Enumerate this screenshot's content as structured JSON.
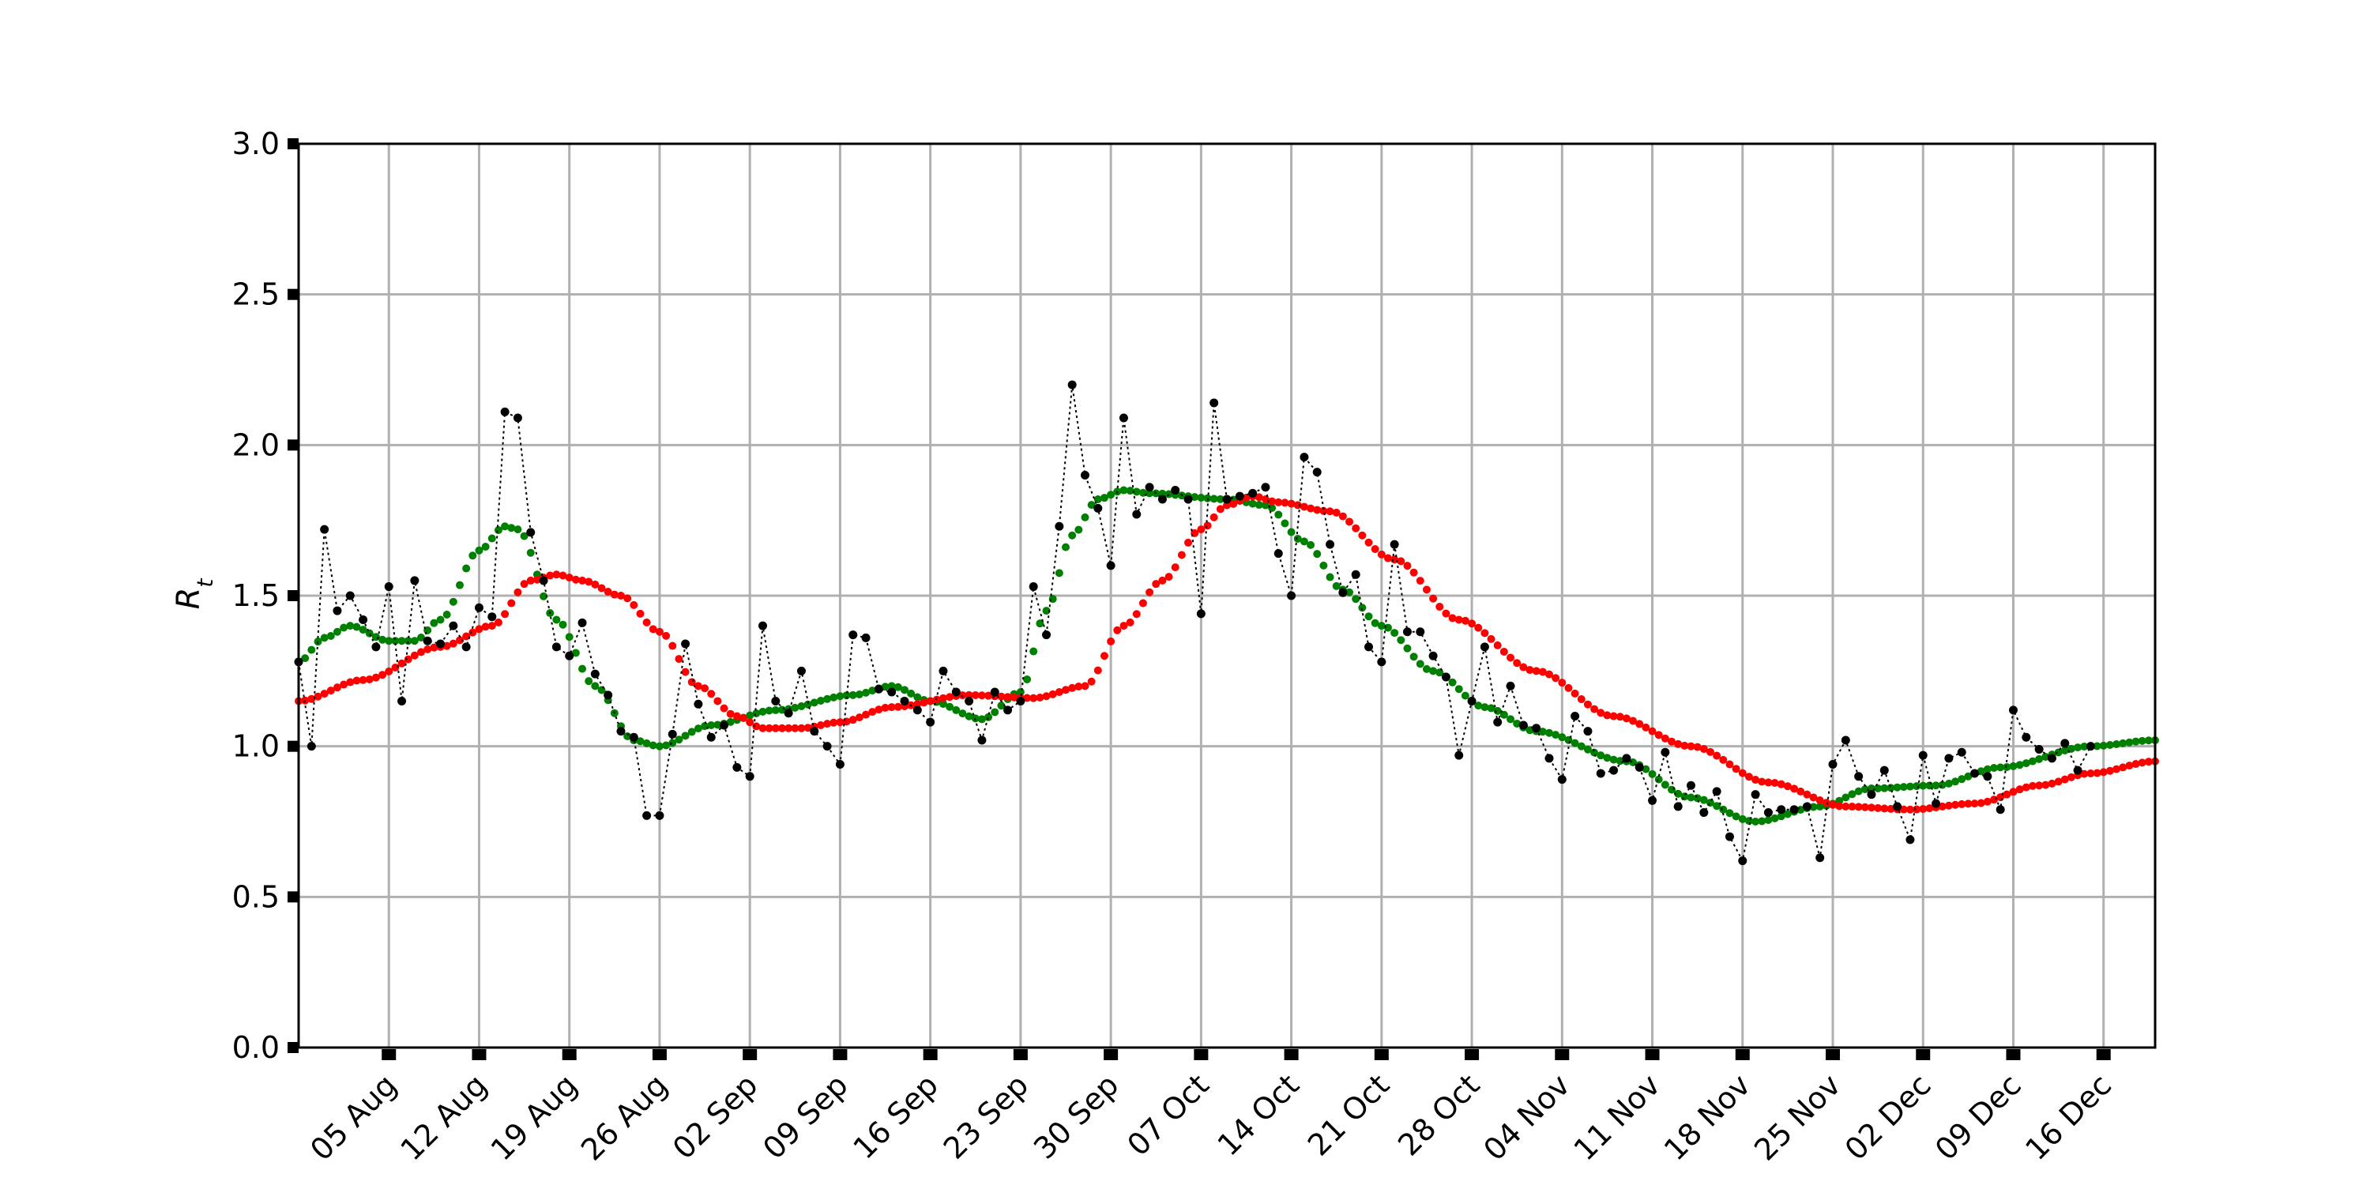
{
  "chart_data": {
    "type": "scatter",
    "title": "",
    "xlabel": "",
    "ylabel": "R",
    "ylabel_subscript": "t",
    "x_start_date": "2020-07-29",
    "x_end_date": "2020-12-20",
    "ylim": [
      0,
      3.0
    ],
    "yticks": [
      "0.0",
      "0.5",
      "1.0",
      "1.5",
      "2.0",
      "2.5",
      "3.0"
    ],
    "xticks": [
      {
        "date": "2020-08-05",
        "label": "05 Aug"
      },
      {
        "date": "2020-08-12",
        "label": "12 Aug"
      },
      {
        "date": "2020-08-19",
        "label": "19 Aug"
      },
      {
        "date": "2020-08-26",
        "label": "26 Aug"
      },
      {
        "date": "2020-09-02",
        "label": "02 Sep"
      },
      {
        "date": "2020-09-09",
        "label": "09 Sep"
      },
      {
        "date": "2020-09-16",
        "label": "16 Sep"
      },
      {
        "date": "2020-09-23",
        "label": "23 Sep"
      },
      {
        "date": "2020-09-30",
        "label": "30 Sep"
      },
      {
        "date": "2020-10-07",
        "label": "07 Oct"
      },
      {
        "date": "2020-10-14",
        "label": "14 Oct"
      },
      {
        "date": "2020-10-21",
        "label": "21 Oct"
      },
      {
        "date": "2020-10-28",
        "label": "28 Oct"
      },
      {
        "date": "2020-11-04",
        "label": "04 Nov"
      },
      {
        "date": "2020-11-11",
        "label": "11 Nov"
      },
      {
        "date": "2020-11-18",
        "label": "18 Nov"
      },
      {
        "date": "2020-11-25",
        "label": "25 Nov"
      },
      {
        "date": "2020-12-02",
        "label": "02 Dec"
      },
      {
        "date": "2020-12-09",
        "label": "09 Dec"
      },
      {
        "date": "2020-12-16",
        "label": "16 Dec"
      }
    ],
    "grid": true,
    "legend": "none",
    "colors": {
      "daily": "#000000",
      "smoothed_7day": "#008000",
      "smoothed_14day": "#ff0000",
      "grid": "#b0b0b0"
    },
    "series": [
      {
        "color": "black",
        "marker": "dot",
        "line": "dotted",
        "points": [
          [
            "2020-07-29",
            1.28
          ],
          [
            "2020-07-30",
            1.0
          ],
          [
            "2020-07-31",
            1.72
          ],
          [
            "2020-08-01",
            1.45
          ],
          [
            "2020-08-02",
            1.5
          ],
          [
            "2020-08-03",
            1.42
          ],
          [
            "2020-08-04",
            1.33
          ],
          [
            "2020-08-05",
            1.53
          ],
          [
            "2020-08-06",
            1.15
          ],
          [
            "2020-08-07",
            1.55
          ],
          [
            "2020-08-08",
            1.35
          ],
          [
            "2020-08-09",
            1.34
          ],
          [
            "2020-08-10",
            1.4
          ],
          [
            "2020-08-11",
            1.33
          ],
          [
            "2020-08-12",
            1.46
          ],
          [
            "2020-08-13",
            1.43
          ],
          [
            "2020-08-14",
            2.11
          ],
          [
            "2020-08-15",
            2.09
          ],
          [
            "2020-08-16",
            1.71
          ],
          [
            "2020-08-17",
            1.55
          ],
          [
            "2020-08-18",
            1.33
          ],
          [
            "2020-08-19",
            1.3
          ],
          [
            "2020-08-20",
            1.41
          ],
          [
            "2020-08-21",
            1.24
          ],
          [
            "2020-08-22",
            1.17
          ],
          [
            "2020-08-23",
            1.05
          ],
          [
            "2020-08-24",
            1.03
          ],
          [
            "2020-08-25",
            0.77
          ],
          [
            "2020-08-26",
            0.77
          ],
          [
            "2020-08-27",
            1.04
          ],
          [
            "2020-08-28",
            1.34
          ],
          [
            "2020-08-29",
            1.14
          ],
          [
            "2020-08-30",
            1.03
          ],
          [
            "2020-08-31",
            1.07
          ],
          [
            "2020-09-01",
            0.93
          ],
          [
            "2020-09-02",
            0.9
          ],
          [
            "2020-09-03",
            1.4
          ],
          [
            "2020-09-04",
            1.15
          ],
          [
            "2020-09-05",
            1.11
          ],
          [
            "2020-09-06",
            1.25
          ],
          [
            "2020-09-07",
            1.05
          ],
          [
            "2020-09-08",
            1.0
          ],
          [
            "2020-09-09",
            0.94
          ],
          [
            "2020-09-10",
            1.37
          ],
          [
            "2020-09-11",
            1.36
          ],
          [
            "2020-09-12",
            1.19
          ],
          [
            "2020-09-13",
            1.18
          ],
          [
            "2020-09-14",
            1.15
          ],
          [
            "2020-09-15",
            1.12
          ],
          [
            "2020-09-16",
            1.08
          ],
          [
            "2020-09-17",
            1.25
          ],
          [
            "2020-09-18",
            1.18
          ],
          [
            "2020-09-19",
            1.15
          ],
          [
            "2020-09-20",
            1.02
          ],
          [
            "2020-09-21",
            1.18
          ],
          [
            "2020-09-22",
            1.12
          ],
          [
            "2020-09-23",
            1.15
          ],
          [
            "2020-09-24",
            1.53
          ],
          [
            "2020-09-25",
            1.37
          ],
          [
            "2020-09-26",
            1.73
          ],
          [
            "2020-09-27",
            2.2
          ],
          [
            "2020-09-28",
            1.9
          ],
          [
            "2020-09-29",
            1.79
          ],
          [
            "2020-09-30",
            1.6
          ],
          [
            "2020-10-01",
            2.09
          ],
          [
            "2020-10-02",
            1.77
          ],
          [
            "2020-10-03",
            1.86
          ],
          [
            "2020-10-04",
            1.82
          ],
          [
            "2020-10-05",
            1.85
          ],
          [
            "2020-10-06",
            1.82
          ],
          [
            "2020-10-07",
            1.44
          ],
          [
            "2020-10-08",
            2.14
          ],
          [
            "2020-10-09",
            1.82
          ],
          [
            "2020-10-10",
            1.83
          ],
          [
            "2020-10-11",
            1.84
          ],
          [
            "2020-10-12",
            1.86
          ],
          [
            "2020-10-13",
            1.64
          ],
          [
            "2020-10-14",
            1.5
          ],
          [
            "2020-10-15",
            1.96
          ],
          [
            "2020-10-16",
            1.91
          ],
          [
            "2020-10-17",
            1.67
          ],
          [
            "2020-10-18",
            1.51
          ],
          [
            "2020-10-19",
            1.57
          ],
          [
            "2020-10-20",
            1.33
          ],
          [
            "2020-10-21",
            1.28
          ],
          [
            "2020-10-22",
            1.67
          ],
          [
            "2020-10-23",
            1.38
          ],
          [
            "2020-10-24",
            1.38
          ],
          [
            "2020-10-25",
            1.3
          ],
          [
            "2020-10-26",
            1.23
          ],
          [
            "2020-10-27",
            0.97
          ],
          [
            "2020-10-28",
            1.15
          ],
          [
            "2020-10-29",
            1.33
          ],
          [
            "2020-10-30",
            1.08
          ],
          [
            "2020-10-31",
            1.2
          ],
          [
            "2020-11-01",
            1.07
          ],
          [
            "2020-11-02",
            1.06
          ],
          [
            "2020-11-03",
            0.96
          ],
          [
            "2020-11-04",
            0.89
          ],
          [
            "2020-11-05",
            1.1
          ],
          [
            "2020-11-06",
            1.05
          ],
          [
            "2020-11-07",
            0.91
          ],
          [
            "2020-11-08",
            0.92
          ],
          [
            "2020-11-09",
            0.96
          ],
          [
            "2020-11-10",
            0.93
          ],
          [
            "2020-11-11",
            0.82
          ],
          [
            "2020-11-12",
            0.98
          ],
          [
            "2020-11-13",
            0.8
          ],
          [
            "2020-11-14",
            0.87
          ],
          [
            "2020-11-15",
            0.78
          ],
          [
            "2020-11-16",
            0.85
          ],
          [
            "2020-11-17",
            0.7
          ],
          [
            "2020-11-18",
            0.62
          ],
          [
            "2020-11-19",
            0.84
          ],
          [
            "2020-11-20",
            0.78
          ],
          [
            "2020-11-21",
            0.79
          ],
          [
            "2020-11-22",
            0.79
          ],
          [
            "2020-11-23",
            0.8
          ],
          [
            "2020-11-24",
            0.63
          ],
          [
            "2020-11-25",
            0.94
          ],
          [
            "2020-11-26",
            1.02
          ],
          [
            "2020-11-27",
            0.9
          ],
          [
            "2020-11-28",
            0.84
          ],
          [
            "2020-11-29",
            0.92
          ],
          [
            "2020-11-30",
            0.8
          ],
          [
            "2020-12-01",
            0.69
          ],
          [
            "2020-12-02",
            0.97
          ],
          [
            "2020-12-03",
            0.81
          ],
          [
            "2020-12-04",
            0.96
          ],
          [
            "2020-12-05",
            0.98
          ],
          [
            "2020-12-06",
            0.91
          ],
          [
            "2020-12-07",
            0.9
          ],
          [
            "2020-12-08",
            0.79
          ],
          [
            "2020-12-09",
            1.12
          ],
          [
            "2020-12-10",
            1.03
          ],
          [
            "2020-12-11",
            0.99
          ],
          [
            "2020-12-12",
            0.96
          ],
          [
            "2020-12-13",
            1.01
          ],
          [
            "2020-12-14",
            0.92
          ],
          [
            "2020-12-15",
            1.0
          ]
        ]
      },
      {
        "color": "green",
        "marker": "dot",
        "line": "none",
        "density_per_day": 2,
        "anchors": [
          [
            "2020-07-29",
            1.28
          ],
          [
            "2020-07-31",
            1.36
          ],
          [
            "2020-08-02",
            1.4
          ],
          [
            "2020-08-05",
            1.35
          ],
          [
            "2020-08-07",
            1.35
          ],
          [
            "2020-08-09",
            1.42
          ],
          [
            "2020-08-12",
            1.65
          ],
          [
            "2020-08-14",
            1.73
          ],
          [
            "2020-08-15",
            1.72
          ],
          [
            "2020-08-18",
            1.42
          ],
          [
            "2020-08-21",
            1.2
          ],
          [
            "2020-08-24",
            1.02
          ],
          [
            "2020-08-26",
            1.0
          ],
          [
            "2020-08-30",
            1.07
          ],
          [
            "2020-09-04",
            1.12
          ],
          [
            "2020-09-10",
            1.17
          ],
          [
            "2020-09-13",
            1.2
          ],
          [
            "2020-09-16",
            1.15
          ],
          [
            "2020-09-20",
            1.09
          ],
          [
            "2020-09-23",
            1.18
          ],
          [
            "2020-09-25",
            1.45
          ],
          [
            "2020-09-27",
            1.7
          ],
          [
            "2020-09-29",
            1.82
          ],
          [
            "2020-10-01",
            1.85
          ],
          [
            "2020-10-03",
            1.84
          ],
          [
            "2020-10-09",
            1.82
          ],
          [
            "2020-10-12",
            1.8
          ],
          [
            "2020-10-15",
            1.68
          ],
          [
            "2020-10-18",
            1.52
          ],
          [
            "2020-10-21",
            1.4
          ],
          [
            "2020-10-25",
            1.25
          ],
          [
            "2020-10-29",
            1.13
          ],
          [
            "2020-11-02",
            1.05
          ],
          [
            "2020-11-09",
            0.95
          ],
          [
            "2020-11-14",
            0.83
          ],
          [
            "2020-11-19",
            0.75
          ],
          [
            "2020-11-24",
            0.8
          ],
          [
            "2020-11-28",
            0.86
          ],
          [
            "2020-12-03",
            0.87
          ],
          [
            "2020-12-08",
            0.93
          ],
          [
            "2020-12-15",
            1.0
          ],
          [
            "2020-12-20",
            1.02
          ]
        ]
      },
      {
        "color": "red",
        "marker": "dot",
        "line": "none",
        "density_per_day": 2,
        "anchors": [
          [
            "2020-07-29",
            1.15
          ],
          [
            "2020-08-03",
            1.22
          ],
          [
            "2020-08-09",
            1.33
          ],
          [
            "2020-08-13",
            1.4
          ],
          [
            "2020-08-16",
            1.55
          ],
          [
            "2020-08-18",
            1.57
          ],
          [
            "2020-08-20",
            1.55
          ],
          [
            "2020-08-23",
            1.5
          ],
          [
            "2020-08-26",
            1.38
          ],
          [
            "2020-08-29",
            1.2
          ],
          [
            "2020-09-01",
            1.1
          ],
          [
            "2020-09-03",
            1.06
          ],
          [
            "2020-09-06",
            1.06
          ],
          [
            "2020-09-09",
            1.08
          ],
          [
            "2020-09-13",
            1.13
          ],
          [
            "2020-09-19",
            1.17
          ],
          [
            "2020-09-24",
            1.16
          ],
          [
            "2020-09-28",
            1.2
          ],
          [
            "2020-10-01",
            1.4
          ],
          [
            "2020-10-04",
            1.55
          ],
          [
            "2020-10-07",
            1.72
          ],
          [
            "2020-10-09",
            1.8
          ],
          [
            "2020-10-11",
            1.83
          ],
          [
            "2020-10-13",
            1.81
          ],
          [
            "2020-10-17",
            1.78
          ],
          [
            "2020-10-22",
            1.62
          ],
          [
            "2020-10-27",
            1.42
          ],
          [
            "2020-11-02",
            1.25
          ],
          [
            "2020-11-08",
            1.1
          ],
          [
            "2020-11-14",
            1.0
          ],
          [
            "2020-11-20",
            0.88
          ],
          [
            "2020-11-26",
            0.8
          ],
          [
            "2020-12-01",
            0.79
          ],
          [
            "2020-12-06",
            0.81
          ],
          [
            "2020-12-11",
            0.87
          ],
          [
            "2020-12-15",
            0.91
          ],
          [
            "2020-12-20",
            0.95
          ]
        ]
      }
    ]
  }
}
